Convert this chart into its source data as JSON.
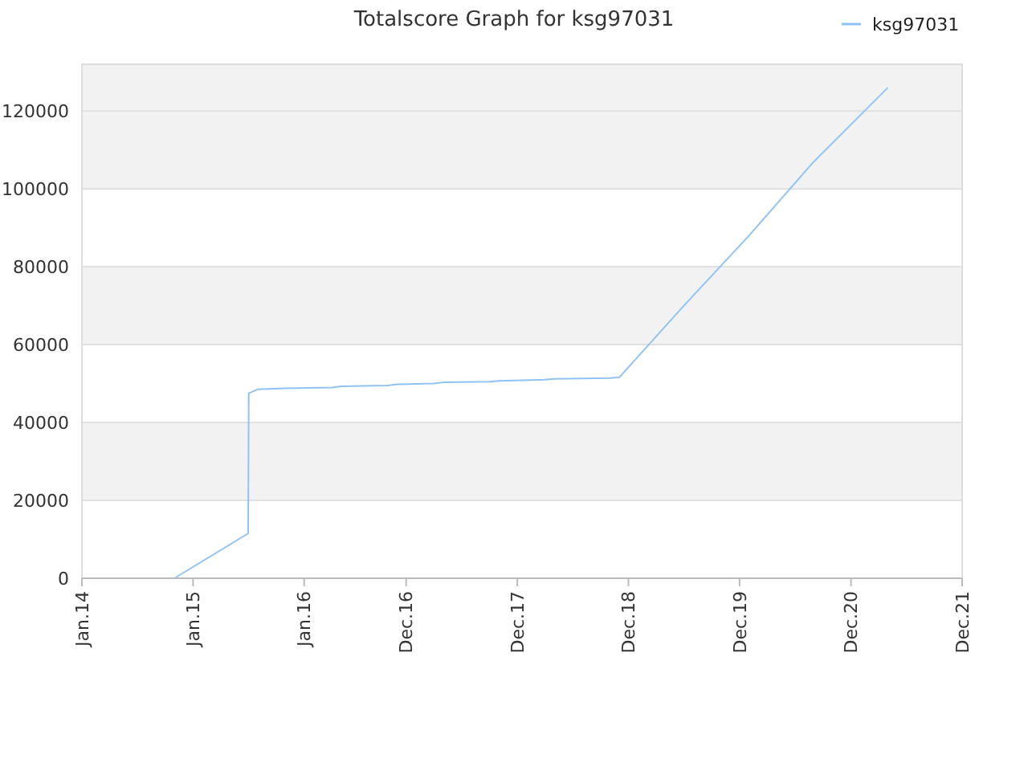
{
  "chart_data": {
    "type": "line",
    "title": "Totalscore Graph for ksg97031",
    "x": [
      "2014-11-01",
      "2015-07-01",
      "2015-07-03",
      "2015-08-01",
      "2015-11-01",
      "2016-04-01",
      "2016-05-01",
      "2016-10-01",
      "2016-11-01",
      "2017-03-01",
      "2017-04-01",
      "2017-09-01",
      "2017-10-01",
      "2018-03-01",
      "2018-04-01",
      "2018-10-01",
      "2018-11-01",
      "2019-06-01",
      "2020-01-01",
      "2020-08-01",
      "2021-04-01"
    ],
    "series": [
      {
        "name": "ksg97031",
        "color": "#90c3f5",
        "values": [
          0,
          11500,
          47500,
          48500,
          48800,
          49000,
          49300,
          49500,
          49800,
          50000,
          50300,
          50500,
          50700,
          51000,
          51200,
          51400,
          51600,
          70000,
          88000,
          107000,
          126000
        ]
      }
    ],
    "xlim": [
      "2014-01-01",
      "2021-12-01"
    ],
    "xticks": [
      {
        "value": "2014-01-01",
        "label": "Jan.14"
      },
      {
        "value": "2015-01-01",
        "label": "Jan.15"
      },
      {
        "value": "2016-01-01",
        "label": "Jan.16"
      },
      {
        "value": "2016-12-01",
        "label": "Dec.16"
      },
      {
        "value": "2017-12-01",
        "label": "Dec.17"
      },
      {
        "value": "2018-12-01",
        "label": "Dec.18"
      },
      {
        "value": "2019-12-01",
        "label": "Dec.19"
      },
      {
        "value": "2020-12-01",
        "label": "Dec.20"
      },
      {
        "value": "2021-12-01",
        "label": "Dec.21"
      }
    ],
    "ylim": [
      0,
      132000
    ],
    "yticks": [
      0,
      20000,
      40000,
      60000,
      80000,
      100000,
      120000
    ],
    "grid": "y",
    "legend": "top right",
    "marker": "none",
    "line_style": "solid"
  }
}
